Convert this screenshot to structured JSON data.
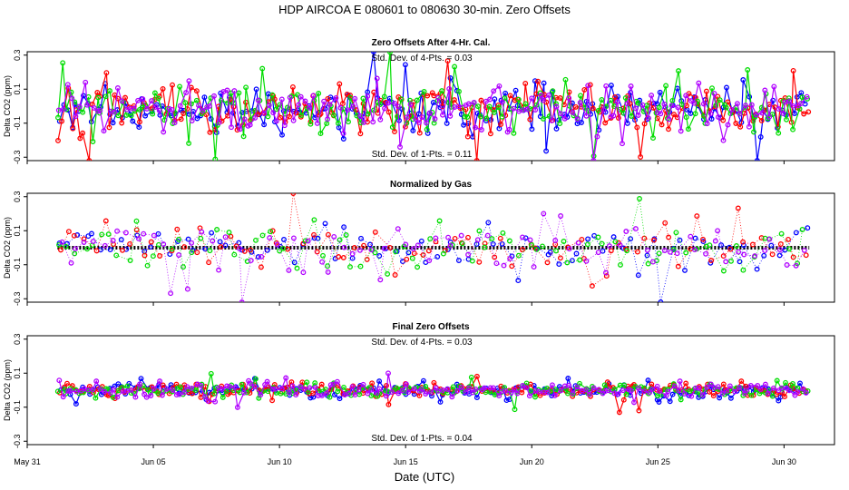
{
  "figure": {
    "title": "HDP   AIRCOA E   080601 to 080630   30-min. Zero Offsets",
    "xlabel": "Date (UTC)"
  },
  "colors": {
    "blue": "#0000ff",
    "red": "#ff0000",
    "green": "#00dd00",
    "purple": "#b000ff",
    "black": "#000000"
  },
  "chart_data": [
    {
      "type": "scatter",
      "title": "Zero Offsets After 4-Hr. Cal.",
      "ylabel": "Delta CO2 (ppm)",
      "ylim": [
        -0.32,
        0.32
      ],
      "yticks": [
        -0.3,
        -0.1,
        0.1,
        0.3
      ],
      "ytick_labels": [
        "-0.3",
        "-0.1",
        "0.1",
        "0.3"
      ],
      "x_range_days": [
        0,
        32
      ],
      "data_x_range": [
        1.2,
        31.0
      ],
      "xticks": [
        0,
        5,
        10,
        15,
        20,
        25,
        30
      ],
      "xtick_labels": [
        "May 31",
        "Jun 05",
        "Jun 10",
        "Jun 15",
        "Jun 20",
        "Jun 25",
        "Jun 30"
      ],
      "x_tick_labels_shown": false,
      "annotations": [
        "Std. Dev. of 4-Pts. = 0.03",
        "Std. Dev. of 1-Pts. = 0.11"
      ],
      "series": [
        {
          "color": "blue",
          "center": -0.02,
          "spread": 0.11
        },
        {
          "color": "red",
          "center": -0.02,
          "spread": 0.11
        },
        {
          "color": "green",
          "center": -0.02,
          "spread": 0.11
        },
        {
          "color": "purple",
          "center": -0.02,
          "spread": 0.11
        }
      ],
      "mean_line": {
        "color": "black",
        "style": "dotted",
        "present": false
      },
      "points_per_series": 180
    },
    {
      "type": "scatter",
      "title": "Normalized by Gas",
      "ylabel": "Delta CO2 (ppm)",
      "ylim": [
        -0.32,
        0.32
      ],
      "yticks": [
        -0.3,
        -0.1,
        0.1,
        0.3
      ],
      "ytick_labels": [
        "-0.3",
        "-0.1",
        "0.1",
        "0.3"
      ],
      "x_range_days": [
        0,
        32
      ],
      "data_x_range": [
        1.2,
        31.0
      ],
      "xticks": [
        0,
        5,
        10,
        15,
        20,
        25,
        30
      ],
      "xtick_labels": [
        "May 31",
        "Jun 05",
        "Jun 10",
        "Jun 15",
        "Jun 20",
        "Jun 25",
        "Jun 30"
      ],
      "x_tick_labels_shown": false,
      "annotations": [],
      "series": [
        {
          "color": "blue",
          "center": 0.0,
          "spread": 0.11
        },
        {
          "color": "red",
          "center": 0.0,
          "spread": 0.11
        },
        {
          "color": "green",
          "center": 0.0,
          "spread": 0.11
        },
        {
          "color": "purple",
          "center": 0.0,
          "spread": 0.11
        }
      ],
      "mean_line": {
        "color": "black",
        "style": "dotted",
        "present": true,
        "value": 0.0
      },
      "points_per_series": 90
    },
    {
      "type": "scatter",
      "title": "Final Zero Offsets",
      "ylabel": "Delta CO2 (ppm)",
      "ylim": [
        -0.32,
        0.32
      ],
      "yticks": [
        -0.3,
        -0.1,
        0.1,
        0.3
      ],
      "ytick_labels": [
        "-0.3",
        "-0.1",
        "0.1",
        "0.3"
      ],
      "x_range_days": [
        0,
        32
      ],
      "data_x_range": [
        1.2,
        31.0
      ],
      "xticks": [
        0,
        5,
        10,
        15,
        20,
        25,
        30
      ],
      "xtick_labels": [
        "May 31",
        "Jun 05",
        "Jun 10",
        "Jun 15",
        "Jun 20",
        "Jun 25",
        "Jun 30"
      ],
      "x_tick_labels_shown": true,
      "annotations": [
        "Std. Dev. of 4-Pts. = 0.03",
        "Std. Dev. of 1-Pts. = 0.04"
      ],
      "series": [
        {
          "color": "blue",
          "center": 0.0,
          "spread": 0.035
        },
        {
          "color": "red",
          "center": 0.0,
          "spread": 0.035
        },
        {
          "color": "green",
          "center": 0.0,
          "spread": 0.035
        },
        {
          "color": "purple",
          "center": 0.0,
          "spread": 0.035
        }
      ],
      "mean_line": {
        "color": "black",
        "style": "dotted",
        "present": false
      },
      "points_per_series": 180
    }
  ]
}
